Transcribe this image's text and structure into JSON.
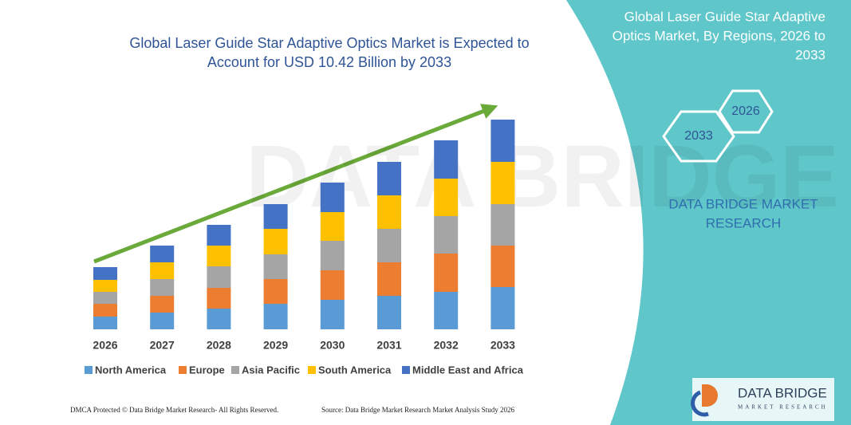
{
  "chart_data": {
    "type": "bar",
    "stacked": true,
    "title": [
      "Global Laser Guide Star Adaptive Optics Market is Expected to",
      "Account for USD 10.42 Billion by 2033"
    ],
    "categories": [
      "2026",
      "2027",
      "2028",
      "2029",
      "2030",
      "2031",
      "2032",
      "2033"
    ],
    "series": [
      {
        "name": "North America",
        "color": "#5b9bd5",
        "values": [
          16,
          21,
          26,
          32,
          37,
          42,
          47,
          53
        ]
      },
      {
        "name": "Europe",
        "color": "#ed7d31",
        "values": [
          16,
          21,
          26,
          31,
          37,
          42,
          48,
          52
        ]
      },
      {
        "name": "Asia Pacific",
        "color": "#a5a5a5",
        "values": [
          15,
          21,
          27,
          31,
          37,
          42,
          47,
          52
        ]
      },
      {
        "name": "South America",
        "color": "#ffc000",
        "values": [
          15,
          21,
          26,
          32,
          36,
          42,
          47,
          53
        ]
      },
      {
        "name": "Middle East and Africa",
        "color": "#4472c4",
        "values": [
          16,
          21,
          26,
          31,
          37,
          42,
          48,
          53
        ]
      }
    ]
  },
  "watermark": "DATA BRIDGE",
  "panel": {
    "title": [
      "Global Laser Guide Star Adaptive",
      "Optics Market, By Regions, 2026 to",
      "2033"
    ],
    "hexagons": [
      "2026",
      "2033"
    ],
    "brand": [
      "DATA BRIDGE MARKET",
      "RESEARCH"
    ]
  },
  "footer": {
    "left": "DMCA Protected © Data Bridge Market Research- All Rights Reserved.",
    "right": "Source: Data Bridge Market Research Market Analysis Study 2026"
  },
  "logo": {
    "name": "DATA BRIDGE",
    "tagline": "MARKET RESEARCH"
  }
}
